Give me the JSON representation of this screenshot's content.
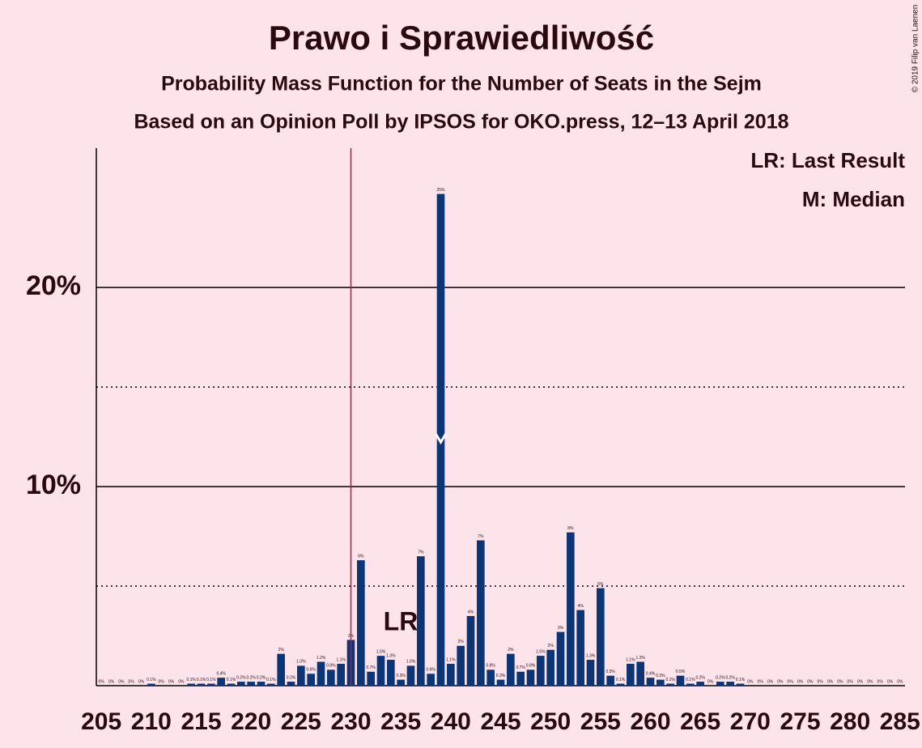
{
  "chart_data": {
    "type": "bar",
    "title": "Prawo i Sprawiedliwość",
    "subtitle": "Probability Mass Function for the Number of Seats in the Sejm",
    "subtitle2": "Based on an Opinion Poll by IPSOS for OKO.press, 12–13 April 2018",
    "copyright": "© 2019 Filip van Laenen",
    "legend": [
      "LR: Last Result",
      "M: Median"
    ],
    "last_result_label": "LR",
    "last_result": 230,
    "median": 239,
    "color": "#0c3576",
    "last_result_color": "#c0143c",
    "x": [
      205,
      206,
      207,
      208,
      209,
      210,
      211,
      212,
      213,
      214,
      215,
      216,
      217,
      218,
      219,
      220,
      221,
      222,
      223,
      224,
      225,
      226,
      227,
      228,
      229,
      230,
      231,
      232,
      233,
      234,
      235,
      236,
      237,
      238,
      239,
      240,
      241,
      242,
      243,
      244,
      245,
      246,
      247,
      248,
      249,
      250,
      251,
      252,
      253,
      254,
      255,
      256,
      257,
      258,
      259,
      260,
      261,
      262,
      263,
      264,
      265,
      266,
      267,
      268,
      269,
      270,
      271,
      272,
      273,
      274,
      275,
      276,
      277,
      278,
      279,
      280,
      281,
      282,
      283,
      284,
      285
    ],
    "values": [
      0,
      0,
      0,
      0,
      0,
      0.1,
      0,
      0,
      0,
      0.1,
      0.1,
      0.1,
      0.4,
      0.1,
      0.2,
      0.2,
      0.2,
      0.1,
      1.6,
      0.2,
      1.0,
      0.6,
      1.2,
      0.8,
      1.1,
      2.3,
      6.3,
      0.7,
      1.5,
      1.3,
      0.3,
      1.0,
      6.5,
      0.6,
      24.7,
      1.1,
      2.0,
      3.5,
      7.3,
      0.8,
      0.3,
      1.6,
      0.7,
      0.8,
      1.5,
      1.8,
      2.7,
      7.7,
      3.8,
      1.3,
      4.9,
      0.5,
      0.1,
      1.1,
      1.2,
      0.4,
      0.3,
      0.1,
      0.5,
      0.1,
      0.2,
      0,
      0.2,
      0.2,
      0.1,
      0,
      0,
      0,
      0,
      0,
      0,
      0,
      0,
      0,
      0,
      0,
      0,
      0,
      0,
      0,
      0
    ],
    "value_labels": [
      "0%",
      "0%",
      "0%",
      "0%",
      "0%",
      "0.1%",
      "0%",
      "0%",
      "0%",
      "0.1%",
      "0.1%",
      "0.1%",
      "0.4%",
      "0.1%",
      "0.2%",
      "0.2%",
      "0.2%",
      "0.1%",
      "2%",
      "0.2%",
      "1.0%",
      "0.6%",
      "1.2%",
      "0.8%",
      "1.1%",
      "2%",
      "6%",
      "0.7%",
      "1.5%",
      "1.3%",
      "0.3%",
      "1.0%",
      "7%",
      "0.6%",
      "25%",
      "1.1%",
      "2%",
      "4%",
      "7%",
      "0.8%",
      "0.3%",
      "2%",
      "0.7%",
      "0.8%",
      "1.5%",
      "2%",
      "3%",
      "8%",
      "4%",
      "1.3%",
      "5%",
      "0.5%",
      "0.1%",
      "1.1%",
      "1.2%",
      "0.4%",
      "0.3%",
      "0.1%",
      "0.5%",
      "0.1%",
      "0.2%",
      "0%",
      "0.2%",
      "0.2%",
      "0.1%",
      "0%",
      "0%",
      "0%",
      "0%",
      "0%",
      "0%",
      "0%",
      "0%",
      "0%",
      "0%",
      "0%",
      "0%",
      "0%",
      "0%",
      "0%",
      "0%"
    ],
    "xlim": [
      204.5,
      285.5
    ],
    "xticks": [
      205,
      210,
      215,
      220,
      225,
      230,
      235,
      240,
      245,
      250,
      255,
      260,
      265,
      270,
      275,
      280,
      285
    ],
    "ylim": [
      0,
      27
    ],
    "yticks": [
      {
        "value": 10,
        "label": "10%"
      },
      {
        "value": 20,
        "label": "20%"
      }
    ],
    "minor_yticks": [
      5,
      15
    ],
    "grid": true
  }
}
